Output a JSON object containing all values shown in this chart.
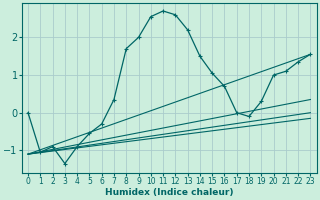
{
  "xlabel": "Humidex (Indice chaleur)",
  "bg_color": "#cceedd",
  "grid_color": "#aacccc",
  "line_color": "#006666",
  "xlim": [
    -0.5,
    23.5
  ],
  "ylim": [
    -1.6,
    2.9
  ],
  "yticks": [
    -1,
    0,
    1,
    2
  ],
  "xticks": [
    0,
    1,
    2,
    3,
    4,
    5,
    6,
    7,
    8,
    9,
    10,
    11,
    12,
    13,
    14,
    15,
    16,
    17,
    18,
    19,
    20,
    21,
    22,
    23
  ],
  "main_series": {
    "x": [
      0,
      1,
      2,
      3,
      4,
      5,
      6,
      7,
      8,
      9,
      10,
      11,
      12,
      13,
      14,
      15,
      16,
      17,
      18,
      19,
      20,
      21,
      22,
      23
    ],
    "y": [
      0.0,
      -1.05,
      -0.9,
      -1.35,
      -0.9,
      -0.55,
      -0.3,
      0.35,
      1.7,
      2.0,
      2.55,
      2.7,
      2.6,
      2.2,
      1.5,
      1.05,
      0.7,
      0.0,
      -0.1,
      0.3,
      1.0,
      1.1,
      1.35,
      1.55
    ]
  },
  "ref_lines": [
    {
      "x0": 0,
      "y0": -1.1,
      "x1": 23,
      "y1": 0.0
    },
    {
      "x0": 0,
      "y0": -1.1,
      "x1": 23,
      "y1": -0.15
    },
    {
      "x0": 0,
      "y0": -1.1,
      "x1": 23,
      "y1": 0.35
    },
    {
      "x0": 0,
      "y0": -1.1,
      "x1": 23,
      "y1": 1.55
    }
  ]
}
